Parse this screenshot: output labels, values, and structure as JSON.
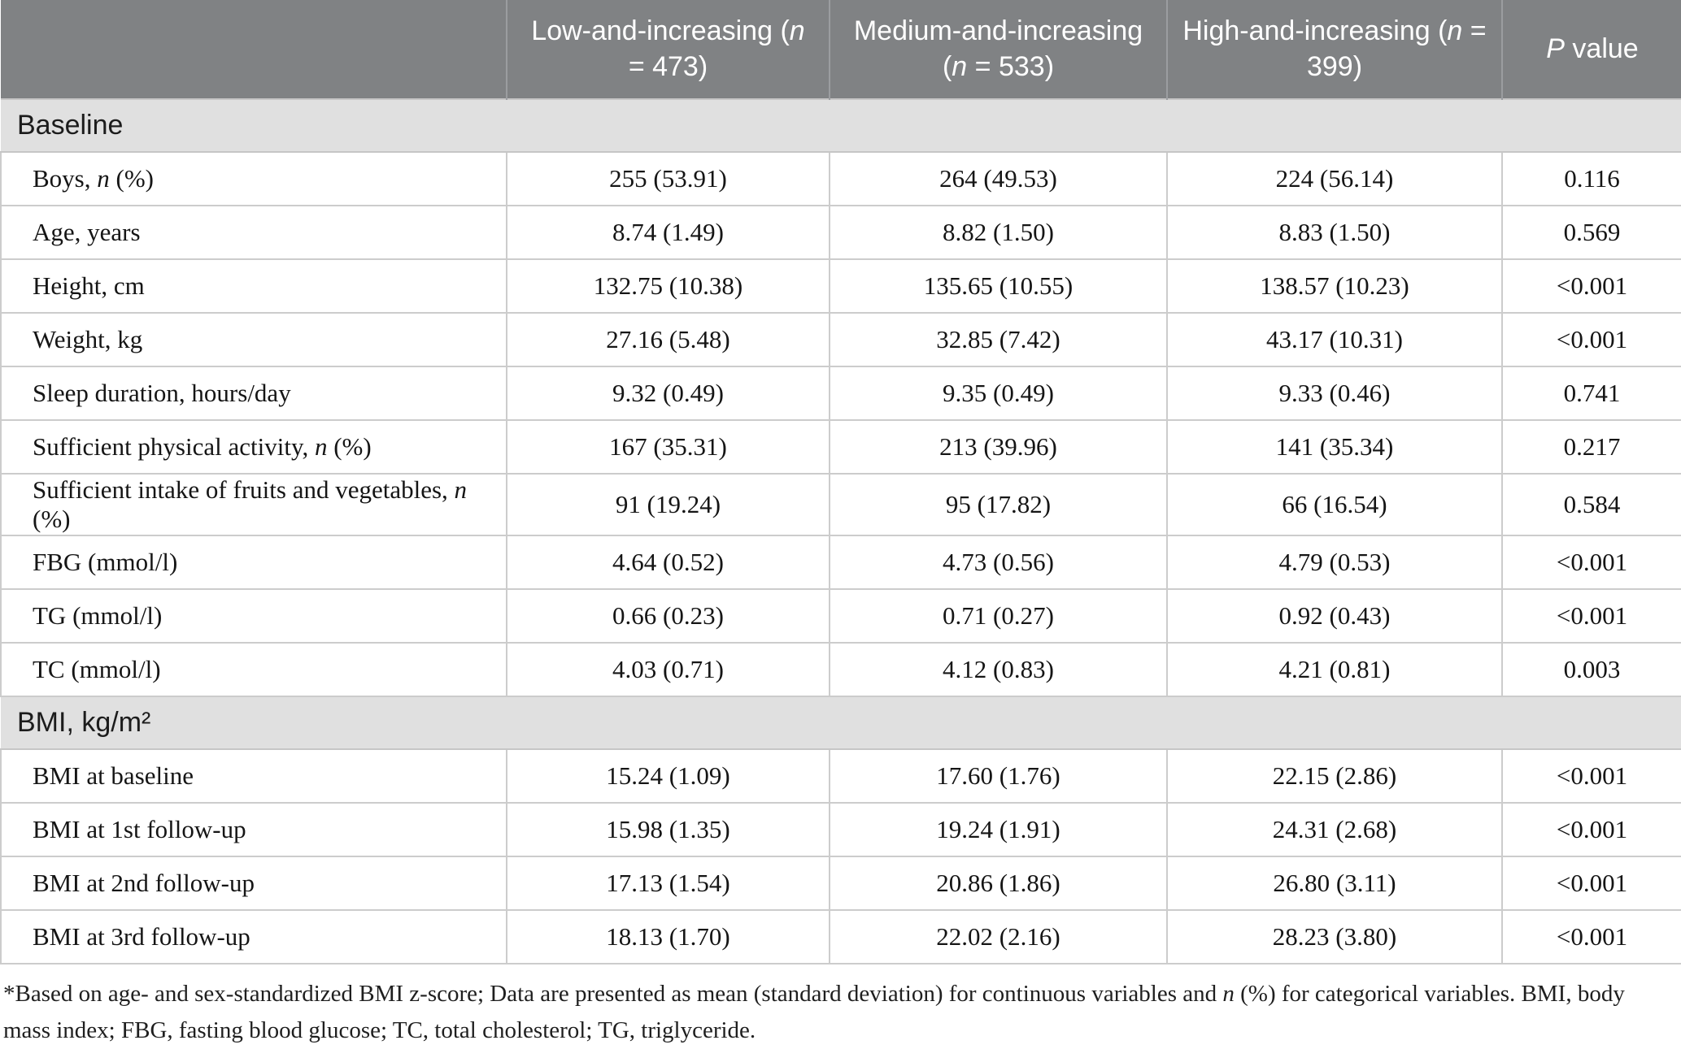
{
  "colors": {
    "header_bg": "#808284",
    "header_text": "#ffffff",
    "section_bg": "#e0e0e0",
    "row_border": "#cccccc",
    "body_text": "#151515"
  },
  "table": {
    "columns": [
      "",
      "Low-and-increasing ({i}n{/i} = 473)",
      "Medium-and-increasing ({i}n{/i} = 533)",
      "High-and-increasing ({i}n{/i} = 399)",
      "{i}P{/i} value"
    ],
    "sections": [
      {
        "title": "Baseline",
        "rows": [
          {
            "label": "Boys, {i}n{/i} (%)",
            "values": [
              "255 (53.91)",
              "264 (49.53)",
              "224 (56.14)",
              "0.116"
            ]
          },
          {
            "label": "Age, years",
            "values": [
              "8.74 (1.49)",
              "8.82 (1.50)",
              "8.83 (1.50)",
              "0.569"
            ]
          },
          {
            "label": "Height, cm",
            "values": [
              "132.75 (10.38)",
              "135.65 (10.55)",
              "138.57 (10.23)",
              "<0.001"
            ]
          },
          {
            "label": "Weight, kg",
            "values": [
              "27.16 (5.48)",
              "32.85 (7.42)",
              "43.17 (10.31)",
              "<0.001"
            ]
          },
          {
            "label": "Sleep duration, hours/day",
            "values": [
              "9.32 (0.49)",
              "9.35 (0.49)",
              "9.33 (0.46)",
              "0.741"
            ]
          },
          {
            "label": "Sufficient physical activity, {i}n{/i} (%)",
            "values": [
              "167 (35.31)",
              "213 (39.96)",
              "141 (35.34)",
              "0.217"
            ]
          },
          {
            "label": "Sufficient intake of fruits and vegetables, {i}n{/i} (%)",
            "values": [
              "91 (19.24)",
              "95 (17.82)",
              "66 (16.54)",
              "0.584"
            ]
          },
          {
            "label": "FBG (mmol/l)",
            "values": [
              "4.64 (0.52)",
              "4.73 (0.56)",
              "4.79 (0.53)",
              "<0.001"
            ]
          },
          {
            "label": "TG (mmol/l)",
            "values": [
              "0.66 (0.23)",
              "0.71 (0.27)",
              "0.92 (0.43)",
              "<0.001"
            ]
          },
          {
            "label": "TC (mmol/l)",
            "values": [
              "4.03 (0.71)",
              "4.12 (0.83)",
              "4.21 (0.81)",
              "0.003"
            ]
          }
        ]
      },
      {
        "title": "BMI, kg/m²",
        "rows": [
          {
            "label": "BMI at baseline",
            "values": [
              "15.24 (1.09)",
              "17.60 (1.76)",
              "22.15 (2.86)",
              "<0.001"
            ]
          },
          {
            "label": "BMI at 1st follow-up",
            "values": [
              "15.98 (1.35)",
              "19.24 (1.91)",
              "24.31 (2.68)",
              "<0.001"
            ]
          },
          {
            "label": "BMI at 2nd follow-up",
            "values": [
              "17.13 (1.54)",
              "20.86 (1.86)",
              "26.80 (3.11)",
              "<0.001"
            ]
          },
          {
            "label": "BMI at 3rd follow-up",
            "values": [
              "18.13 (1.70)",
              "22.02 (2.16)",
              "28.23 (3.80)",
              "<0.001"
            ]
          }
        ]
      }
    ],
    "footnote": "*Based on age- and sex-standardized BMI z-score; Data are presented as mean (standard deviation) for continuous variables and {i}n{/i} (%) for categorical variables. BMI, body mass index; FBG, fasting blood glucose; TC, total cholesterol; TG, triglyceride."
  }
}
